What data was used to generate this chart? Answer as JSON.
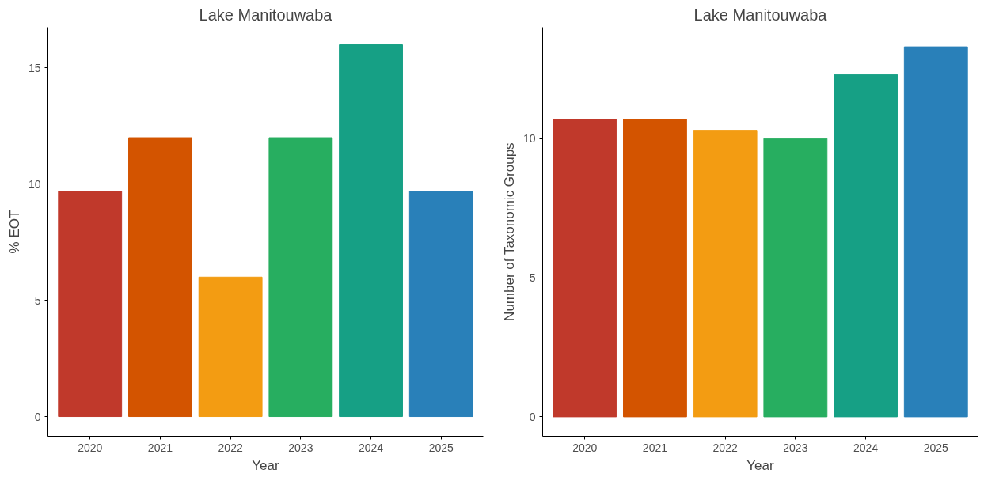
{
  "chart_data": [
    {
      "type": "bar",
      "title": "Lake Manitouwaba",
      "xlabel": "Year",
      "ylabel": "% EOT",
      "categories": [
        "2020",
        "2021",
        "2022",
        "2023",
        "2024",
        "2025"
      ],
      "values": [
        9.7,
        12,
        6,
        12,
        16,
        9.7
      ],
      "colors": [
        "#c0392b",
        "#d35400",
        "#f39c12",
        "#27ae60",
        "#16a085",
        "#2980b9"
      ],
      "ylim": [
        -0.85,
        16.75
      ],
      "yticks": [
        0,
        5,
        10,
        15
      ],
      "grid": false
    },
    {
      "type": "bar",
      "title": "Lake Manitouwaba",
      "xlabel": "Year",
      "ylabel": "Number of Taxonomic Groups",
      "categories": [
        "2020",
        "2021",
        "2022",
        "2023",
        "2024",
        "2025"
      ],
      "values": [
        10.7,
        10.7,
        10.3,
        10,
        12.3,
        13.3
      ],
      "colors": [
        "#c0392b",
        "#d35400",
        "#f39c12",
        "#27ae60",
        "#16a085",
        "#2980b9"
      ],
      "ylim": [
        -0.7,
        14
      ],
      "yticks": [
        0,
        5,
        10
      ],
      "grid": false
    }
  ]
}
